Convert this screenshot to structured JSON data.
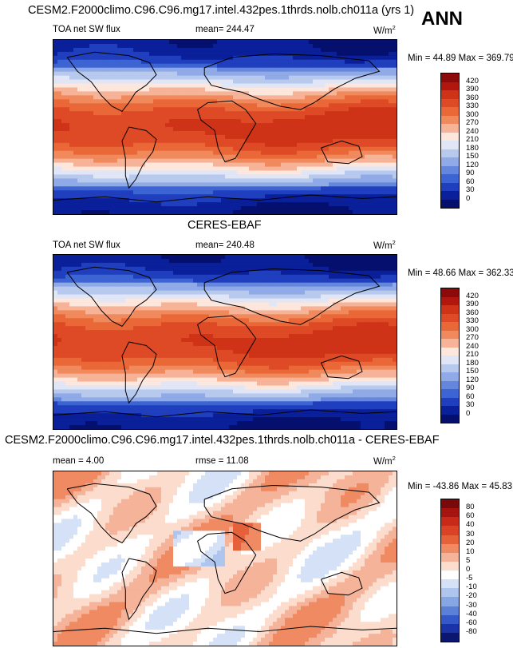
{
  "header": {
    "title": "CESM2.F2000climo.C96.C96.mg17.intel.432pes.1thrds.nolb.ch011a (yrs 1)",
    "season": "ANN"
  },
  "panels": [
    {
      "title": "",
      "var_label": "TOA net SW flux",
      "stat_label": "mean= 244.47",
      "units": "W/m",
      "units_exp": "2",
      "minmax": "Min =  44.89 Max = 369.79"
    },
    {
      "title": "CERES-EBAF",
      "var_label": "TOA net SW flux",
      "stat_label": "mean= 240.48",
      "units": "W/m",
      "units_exp": "2",
      "minmax": "Min =  48.66 Max = 362.33"
    },
    {
      "title": "CESM2.F2000climo.C96.C96.mg17.intel.432pes.1thrds.nolb.ch011a - CERES-EBAF",
      "var_label": "mean =   4.00",
      "stat_label": "rmse =  11.08",
      "units": "W/m",
      "units_exp": "2",
      "minmax": "Min = -43.86 Max =  45.83"
    }
  ],
  "chart_data": [
    {
      "type": "heatmap",
      "title": "TOA net SW flux",
      "units": "W/m2",
      "mean": 244.47,
      "min": 44.89,
      "max": 369.79,
      "colorbar_levels": [
        "420",
        "390",
        "360",
        "330",
        "300",
        "270",
        "240",
        "210",
        "180",
        "150",
        "120",
        "90",
        "60",
        "30",
        "0"
      ],
      "colors": [
        "#8c0a0a",
        "#b1170f",
        "#cf3317",
        "#de4a25",
        "#ea6838",
        "#f08a5c",
        "#f6b397",
        "#fde6dc",
        "#e0e6f6",
        "#b8c9ee",
        "#8faae6",
        "#6486dc",
        "#3d64d3",
        "#1f3fbf",
        "#0a1f9a",
        "#05106e"
      ]
    },
    {
      "type": "heatmap",
      "title": "CERES-EBAF",
      "units": "W/m2",
      "mean": 240.48,
      "min": 48.66,
      "max": 362.33,
      "colorbar_levels": [
        "420",
        "390",
        "360",
        "330",
        "300",
        "270",
        "240",
        "210",
        "180",
        "150",
        "120",
        "90",
        "60",
        "30",
        "0"
      ],
      "colors": [
        "#8c0a0a",
        "#b1170f",
        "#cf3317",
        "#de4a25",
        "#ea6838",
        "#f08a5c",
        "#f6b397",
        "#fde6dc",
        "#e0e6f6",
        "#b8c9ee",
        "#8faae6",
        "#6486dc",
        "#3d64d3",
        "#1f3fbf",
        "#0a1f9a",
        "#05106e"
      ]
    },
    {
      "type": "heatmap",
      "title": "CESM2.F2000climo.C96.C96.mg17.intel.432pes.1thrds.nolb.ch011a - CERES-EBAF",
      "units": "W/m2",
      "mean": 4.0,
      "rmse": 11.08,
      "min": -43.86,
      "max": 45.83,
      "colorbar_levels": [
        "80",
        "60",
        "40",
        "30",
        "20",
        "10",
        "5",
        "0",
        "-5",
        "-10",
        "-20",
        "-30",
        "-40",
        "-60",
        "-80"
      ],
      "colors": [
        "#7a0a0a",
        "#a5140f",
        "#c72a18",
        "#d94224",
        "#e5613a",
        "#ef8a62",
        "#f5b39a",
        "#fbdccd",
        "#ffffff",
        "#d5e1f6",
        "#aec5ee",
        "#86a6e4",
        "#5a80d8",
        "#3558c8",
        "#1b33a8",
        "#0a1670"
      ]
    }
  ]
}
